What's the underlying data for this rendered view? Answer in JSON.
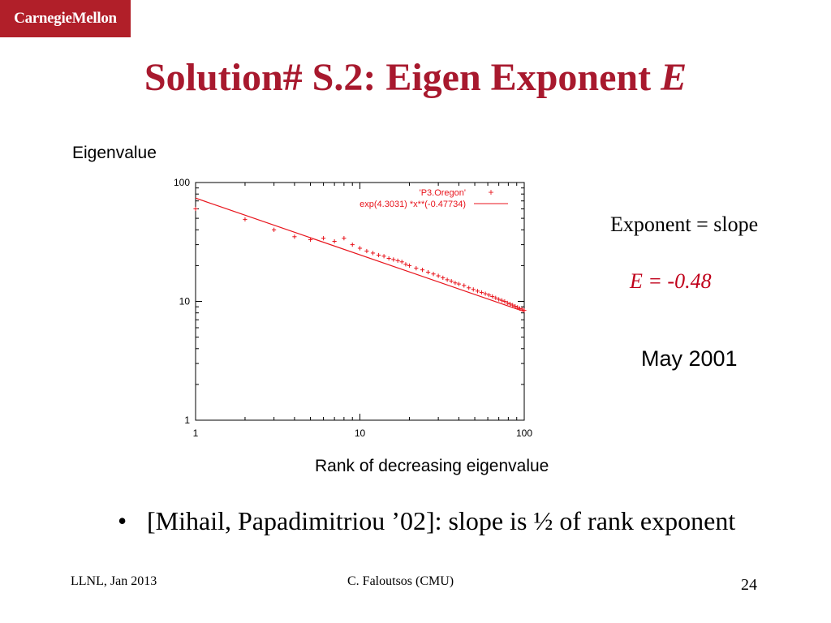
{
  "header": {
    "logo_text": "CarnegieMellon",
    "title_main": "Solution# S.2: Eigen Exponent ",
    "title_italic": "E"
  },
  "chart_data": {
    "type": "scatter",
    "xlabel": "Rank of decreasing eigenvalue",
    "ylabel": "Eigenvalue",
    "x_scale": "log",
    "y_scale": "log",
    "xlim": [
      1,
      100
    ],
    "ylim": [
      1,
      100
    ],
    "x_ticks": [
      1,
      10,
      100
    ],
    "y_ticks": [
      1,
      10,
      100
    ],
    "x_tick_labels": [
      "1",
      "10",
      "100"
    ],
    "y_tick_labels": [
      "1",
      "10",
      "100"
    ],
    "grid": false,
    "legend_position": "top-right",
    "color": "#e8141c",
    "series": [
      {
        "name": "'P3.Oregon'",
        "kind": "points",
        "x": [
          1,
          2,
          3,
          4,
          5,
          6,
          7,
          8,
          9,
          10,
          11,
          12,
          13,
          14,
          15,
          16,
          17,
          18,
          19,
          20,
          22,
          24,
          26,
          28,
          30,
          32,
          34,
          36,
          38,
          40,
          43,
          46,
          49,
          52,
          55,
          58,
          61,
          64,
          67,
          70,
          73,
          76,
          79,
          82,
          85,
          88,
          91,
          94,
          97,
          100
        ],
        "values": [
          60,
          49,
          40,
          35,
          33,
          34,
          32,
          34,
          30,
          28,
          26.5,
          25.5,
          24.5,
          24,
          23,
          22.5,
          22,
          21.5,
          20.5,
          20,
          19,
          18.4,
          17.6,
          17,
          16.4,
          15.8,
          15.2,
          14.8,
          14.3,
          14,
          13.6,
          13,
          12.6,
          12.2,
          11.9,
          11.6,
          11.3,
          11,
          10.7,
          10.4,
          10.2,
          10,
          9.7,
          9.5,
          9.3,
          9.1,
          8.9,
          8.7,
          8.6,
          8.4
        ]
      },
      {
        "name": "exp(4.3031) *x**(-0.47734)",
        "kind": "fit",
        "intercept_ln": 4.3031,
        "exponent": -0.47734
      }
    ]
  },
  "notes": {
    "exponent_label": "Exponent = slope",
    "e_value": "E = -0.48",
    "date": "May 2001"
  },
  "bullets": [
    "[Mihail, Papadimitriou ’02]: slope is ½ of rank exponent"
  ],
  "footer": {
    "left": "LLNL, Jan 2013",
    "center": "C. Faloutsos (CMU)",
    "page": "24"
  }
}
